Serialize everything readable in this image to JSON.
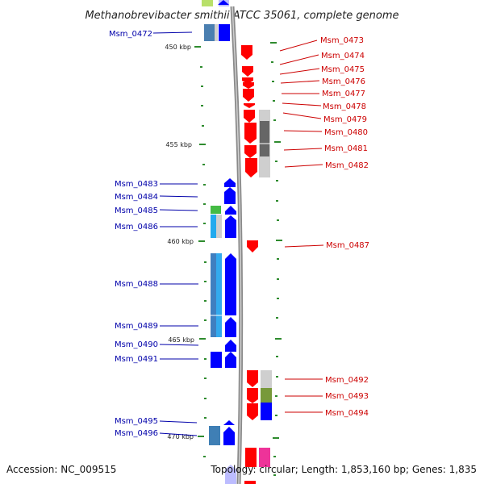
{
  "title": "Methanobrevibacter smithii ATCC 35061, complete genome",
  "accession": "Accession: NC_009515",
  "summary": "Topology: circular; Length: 1,853,160 bp; Genes: 1,835",
  "colors": {
    "forward": "#0000ff",
    "reverse": "#ff0000",
    "forward_label": "#0000aa",
    "reverse_label": "#cc0000",
    "backbone": "#999999",
    "tick": "#2e8b2e"
  },
  "scale_ticks": [
    {
      "label": "450 kbp",
      "kbp": 450
    },
    {
      "label": "455 kbp",
      "kbp": 455
    },
    {
      "label": "460 kbp",
      "kbp": 460
    },
    {
      "label": "465 kbp",
      "kbp": 465
    },
    {
      "label": "470 kbp",
      "kbp": 470
    }
  ],
  "genes_forward": [
    {
      "name": "Msm_0472"
    },
    {
      "name": "Msm_0483"
    },
    {
      "name": "Msm_0484"
    },
    {
      "name": "Msm_0485"
    },
    {
      "name": "Msm_0486"
    },
    {
      "name": "Msm_0488"
    },
    {
      "name": "Msm_0489"
    },
    {
      "name": "Msm_0490"
    },
    {
      "name": "Msm_0491"
    },
    {
      "name": "Msm_0495"
    },
    {
      "name": "Msm_0496"
    }
  ],
  "genes_reverse": [
    {
      "name": "Msm_0473"
    },
    {
      "name": "Msm_0474"
    },
    {
      "name": "Msm_0475"
    },
    {
      "name": "Msm_0476"
    },
    {
      "name": "Msm_0477"
    },
    {
      "name": "Msm_0478"
    },
    {
      "name": "Msm_0479"
    },
    {
      "name": "Msm_0480"
    },
    {
      "name": "Msm_0481"
    },
    {
      "name": "Msm_0482"
    },
    {
      "name": "Msm_0487"
    },
    {
      "name": "Msm_0492"
    },
    {
      "name": "Msm_0493"
    },
    {
      "name": "Msm_0494"
    }
  ]
}
